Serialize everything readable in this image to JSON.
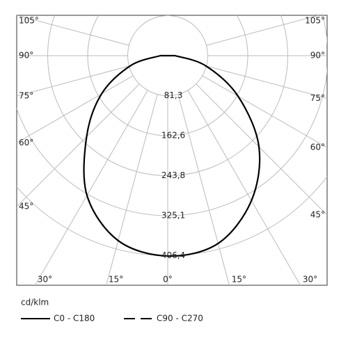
{
  "chart_data": {
    "type": "polar",
    "unit": "cd/klm",
    "angles": [
      -90,
      -75,
      -60,
      -45,
      -30,
      -15,
      0,
      15,
      30,
      45,
      60,
      75,
      90
    ],
    "series": [
      {
        "name": "C0 - C180",
        "color": "#000000",
        "dash": "solid",
        "values": [
          15,
          78,
          155,
          233,
          328,
          389,
          407,
          395,
          340,
          262,
          165,
          80,
          15
        ]
      },
      {
        "name": "C90 - C270",
        "color": "#000000",
        "dash": "dashed"
      }
    ],
    "rlim": [
      0,
      406.4
    ],
    "rticks": [
      {
        "value": 81.3,
        "label": "81,3"
      },
      {
        "value": 162.6,
        "label": "162,6"
      },
      {
        "value": 243.8,
        "label": "243,8"
      },
      {
        "value": 325.1,
        "label": "325,1"
      },
      {
        "value": 406.4,
        "label": "406,4"
      }
    ],
    "angle_ticks": [
      {
        "value": 0,
        "label": "0°"
      },
      {
        "value": 15,
        "label": "15°"
      },
      {
        "value": 30,
        "label": "30°"
      },
      {
        "value": 45,
        "label": "45°"
      },
      {
        "value": 60,
        "label": "60°"
      },
      {
        "value": 75,
        "label": "75°"
      },
      {
        "value": 90,
        "label": "90°"
      },
      {
        "value": 105,
        "label": "105°"
      }
    ],
    "grid": true
  }
}
